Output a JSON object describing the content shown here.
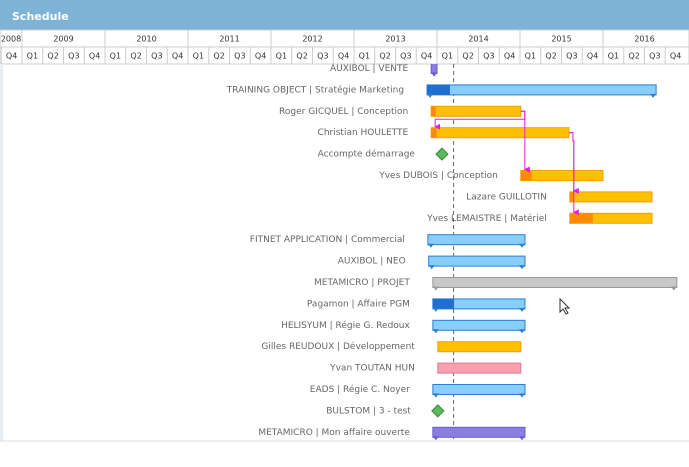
{
  "header": {
    "title": "Schedule"
  },
  "timeline": {
    "years": [
      2008,
      2009,
      2010,
      2011,
      2012,
      2013,
      2014,
      2015,
      2016
    ],
    "quarters": [
      "Q4",
      "Q1",
      "Q2",
      "Q3",
      "Q4",
      "Q1",
      "Q2",
      "Q3",
      "Q4",
      "Q1",
      "Q2",
      "Q3",
      "Q4",
      "Q1",
      "Q2",
      "Q3",
      "Q4",
      "Q1",
      "Q2",
      "Q3",
      "Q4",
      "Q1",
      "Q2",
      "Q3",
      "Q4",
      "Q1",
      "Q2",
      "Q3",
      "Q4",
      "Q1",
      "Q2",
      "Q3",
      "Q4"
    ],
    "today": 2014.2
  },
  "tasks": [
    {
      "label": "AUXIBOL | VENTE",
      "kind": "purple",
      "start": 2013.93,
      "end": 2014.0
    },
    {
      "label": "TRAINING OBJECT | Stratégie Marketing",
      "kind": "blue",
      "start": 2013.88,
      "end": 2016.64,
      "progress": 10
    },
    {
      "label": "Roger GICQUEL | Conception",
      "kind": "orange",
      "start": 2013.93,
      "end": 2015.01,
      "progress": 5
    },
    {
      "label": "Christian HOULETTE",
      "kind": "orange",
      "start": 2013.93,
      "end": 2015.59,
      "progress": 4
    },
    {
      "label": "Accompte démarrage",
      "kind": "milestone",
      "start": 2014.06
    },
    {
      "label": "Yves DUBOIS | Conception",
      "kind": "orange",
      "start": 2015.01,
      "end": 2016.0,
      "progress": 13
    },
    {
      "label": "Lazare GUILLOTIN",
      "kind": "orange",
      "start": 2015.6,
      "end": 2016.59,
      "progress": 5
    },
    {
      "label": "Yves LEMAISTRE | Matériel",
      "kind": "orange",
      "start": 2015.6,
      "end": 2016.59,
      "progress": 28
    },
    {
      "label": "FITNET APPLICATION | Commercial",
      "kind": "blue",
      "start": 2013.89,
      "end": 2015.06
    },
    {
      "label": "AUXIBOL | NEO",
      "kind": "blue",
      "start": 2013.9,
      "end": 2015.06
    },
    {
      "label": "METAMICRO | PROJET",
      "kind": "gray",
      "start": 2013.95,
      "end": 2016.89
    },
    {
      "label": "Pagamon | Affaire PGM",
      "kind": "blue",
      "start": 2013.95,
      "end": 2015.06,
      "progress": 23
    },
    {
      "label": "HELISYUM | Régie G. Redoux",
      "kind": "blue",
      "start": 2013.95,
      "end": 2015.06
    },
    {
      "label": "Gilles REUDOUX | Développement",
      "kind": "orange",
      "start": 2014.01,
      "end": 2015.01
    },
    {
      "label": "Yvan TOUTAN HUN",
      "kind": "pink",
      "start": 2014.01,
      "end": 2015.01
    },
    {
      "label": "EADS | Régie C. Noyer",
      "kind": "blue",
      "start": 2013.95,
      "end": 2015.06
    },
    {
      "label": "BULSTOM | 3 - test",
      "kind": "milestone",
      "start": 2014.01
    },
    {
      "label": "METAMICRO | Mon affaire ouverte",
      "kind": "purple",
      "start": 2013.95,
      "end": 2015.06
    }
  ],
  "links": [
    [
      2,
      3
    ],
    [
      2,
      5
    ],
    [
      3,
      6
    ],
    [
      3,
      7
    ]
  ]
}
